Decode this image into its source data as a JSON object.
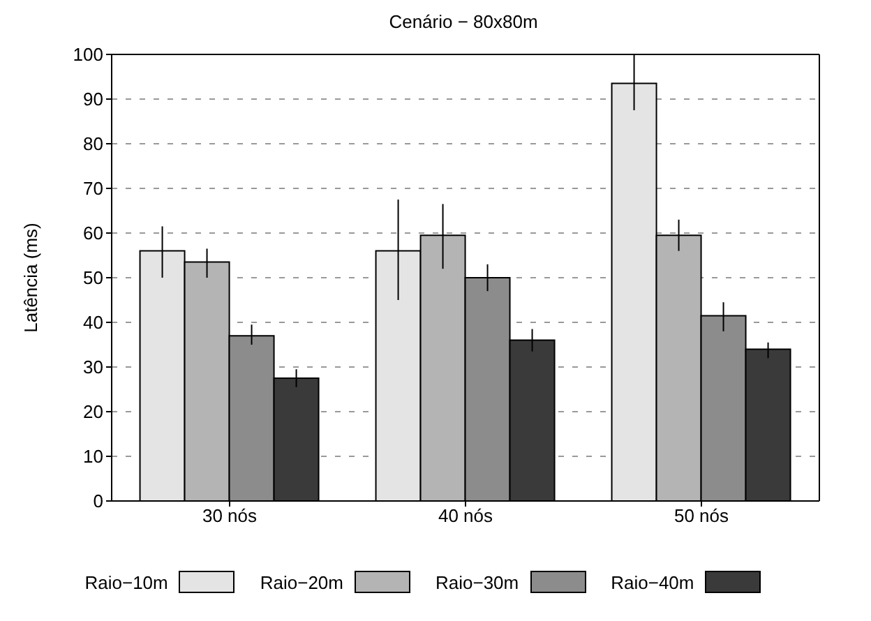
{
  "chart_data": {
    "type": "bar",
    "title": "Cenário − 80x80m",
    "ylabel": "Latência (ms)",
    "categories": [
      "30 nós",
      "40 nós",
      "50 nós"
    ],
    "series": [
      {
        "name": "Raio−10m",
        "color": "#e4e4e4",
        "values": [
          56,
          56,
          93.5
        ],
        "errors": [
          [
            50,
            61.5
          ],
          [
            45,
            67.5
          ],
          [
            87.5,
            100
          ]
        ]
      },
      {
        "name": "Raio−20m",
        "color": "#b4b4b4",
        "values": [
          53.5,
          59.5,
          59.5
        ],
        "errors": [
          [
            50,
            56.5
          ],
          [
            52,
            66.5
          ],
          [
            56,
            63
          ]
        ]
      },
      {
        "name": "Raio−30m",
        "color": "#8c8c8c",
        "values": [
          37,
          50,
          41.5
        ],
        "errors": [
          [
            35,
            39.5
          ],
          [
            47,
            53
          ],
          [
            38,
            44.5
          ]
        ]
      },
      {
        "name": "Raio−40m",
        "color": "#3a3a3a",
        "values": [
          27.5,
          36,
          34
        ],
        "errors": [
          [
            25.5,
            29.5
          ],
          [
            33.5,
            38.5
          ],
          [
            32,
            35.5
          ]
        ]
      }
    ],
    "ylim": [
      0,
      100
    ],
    "yticks": [
      0,
      10,
      20,
      30,
      40,
      50,
      60,
      70,
      80,
      90,
      100
    ],
    "grid": "y",
    "legend": "bottom"
  }
}
